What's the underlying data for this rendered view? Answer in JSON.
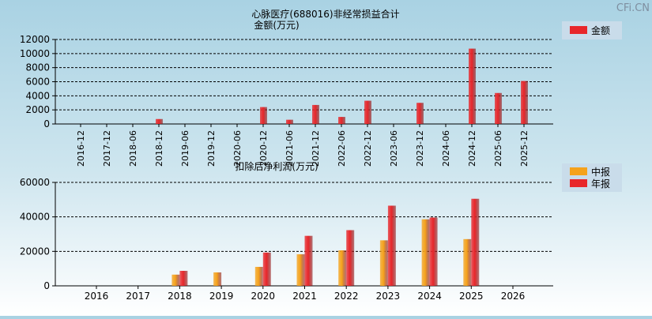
{
  "watermark": "CFi.CN",
  "colors": {
    "bar_red": "#e8262a",
    "bar_orange": "#f5a21b",
    "grid": "#000000",
    "legend_bg": "#c9dcea"
  },
  "chart_data": [
    {
      "type": "bar",
      "title": "心脉医疗(688016)非经常损益合计",
      "subtitle": "金额(万元)",
      "categories": [
        "2016-12",
        "2017-12",
        "2018-06",
        "2018-12",
        "2019-06",
        "2019-12",
        "2020-06",
        "2020-12",
        "2021-06",
        "2021-12",
        "2022-06",
        "2022-12",
        "2023-06",
        "2023-12",
        "2024-06",
        "2024-12",
        "2025-06",
        "2025-12"
      ],
      "series": [
        {
          "name": "金额",
          "color": "#e8262a",
          "values": [
            0,
            0,
            0,
            700,
            0,
            0,
            0,
            2400,
            600,
            2700,
            1000,
            3300,
            0,
            3000,
            0,
            10700,
            4400,
            6100
          ]
        }
      ],
      "ylim": [
        0,
        12000
      ],
      "yticks": [
        0,
        2000,
        4000,
        6000,
        8000,
        10000,
        12000
      ],
      "grid": true,
      "legend": "top-right"
    },
    {
      "type": "bar",
      "title": "扣除后净利润(万元)",
      "categories": [
        "2016",
        "2017",
        "2018",
        "2019",
        "2020",
        "2021",
        "2022",
        "2023",
        "2024",
        "2025",
        "2026"
      ],
      "series": [
        {
          "name": "中报",
          "color": "#f5a21b",
          "values": [
            0,
            0,
            6500,
            7800,
            11000,
            18300,
            20600,
            26400,
            38600,
            27100,
            0
          ]
        },
        {
          "name": "年报",
          "color": "#e8262a",
          "values": [
            0,
            0,
            8700,
            0,
            19300,
            29000,
            32300,
            46500,
            39600,
            50500,
            0
          ]
        }
      ],
      "ylim": [
        0,
        60000
      ],
      "yticks": [
        0,
        20000,
        40000,
        60000
      ],
      "grid": true,
      "legend": "top-right"
    }
  ]
}
